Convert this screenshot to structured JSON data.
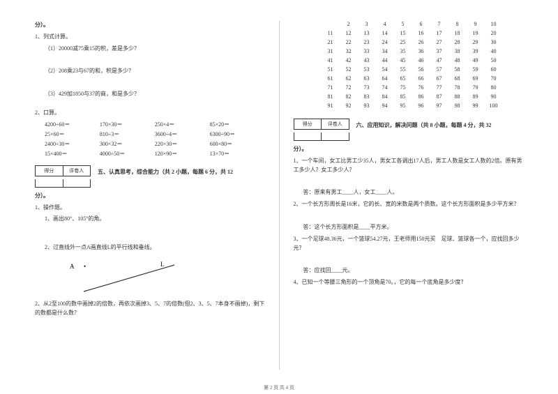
{
  "left": {
    "fen": "分）。",
    "q1": "1、列式计算。",
    "q1_1": "（1）20000减75乘15的积，差是多少？",
    "q1_2": "（2）208乘23与67的和，积是多少？",
    "q1_3": "（3）429加1850与37的商，和是多少？",
    "q2": "2、口算。",
    "calc": [
      [
        "4200÷60＝",
        "170×30＝",
        "250×4＝",
        "85×20＝"
      ],
      [
        "25×60＝",
        "810÷3＝",
        "3600÷4＝",
        "6300÷90＝"
      ],
      [
        "2400÷30＝",
        "300×32＝",
        "220×30＝",
        "600×80＝"
      ],
      [
        "15×400＝",
        "4000÷50＝",
        "120×90＝",
        "13×70＝"
      ]
    ],
    "score_a": "得分",
    "score_b": "评卷人",
    "sec5": "五、认真思考，综合能力（共 2 小题，每题 6 分，共 12",
    "fen2": "分）。",
    "op1": "1、操作题。",
    "op1_1": "1、画出80°、105°的角。",
    "op1_2": "2、过直线外一点A画直线L的平行线和垂线。",
    "label_A": "A",
    "label_dot": "•",
    "label_L": "L",
    "op2": "2、从2至100的数中画掉2的倍数，再依次画掉3、5、7的倍数(但2、3、5、7本身不画掉)，剩下的数都是什么数？"
  },
  "right": {
    "nums": [
      [
        "",
        "2",
        "3",
        "4",
        "5",
        "6",
        "7",
        "8",
        "9",
        "10"
      ],
      [
        "11",
        "12",
        "13",
        "14",
        "15",
        "16",
        "17",
        "18",
        "19",
        "20"
      ],
      [
        "21",
        "22",
        "23",
        "24",
        "25",
        "26",
        "27",
        "28",
        "29",
        "30"
      ],
      [
        "31",
        "32",
        "33",
        "34",
        "35",
        "36",
        "37",
        "38",
        "39",
        "40"
      ],
      [
        "41",
        "42",
        "43",
        "44",
        "45",
        "46",
        "47",
        "48",
        "49",
        "50"
      ],
      [
        "51",
        "52",
        "53",
        "54",
        "55",
        "56",
        "57",
        "58",
        "59",
        "60"
      ],
      [
        "61",
        "62",
        "63",
        "64",
        "65",
        "66",
        "67",
        "68",
        "69",
        "70"
      ],
      [
        "71",
        "72",
        "73",
        "74",
        "75",
        "76",
        "77",
        "78",
        "79",
        "80"
      ],
      [
        "81",
        "82",
        "83",
        "84",
        "85",
        "86",
        "87",
        "88",
        "89",
        "90"
      ],
      [
        "91",
        "92",
        "93",
        "94",
        "95",
        "96",
        "97",
        "98",
        "99",
        "100"
      ]
    ],
    "score_a": "得分",
    "score_b": "评卷人",
    "sec6": "六、应用知识，解决问题（共 8 小题，每题 4 分，共 32",
    "fen": "分）。",
    "p1": "1、一个车间，女工比男工少35人，男女工各调出17人后，男工人数是女工人数的2倍。原有男工多少人？女工多少人？",
    "a1": "答：原来有男工____人，女工____人。",
    "p2": "2、一个长方形周长是16米，它的长、宽的米数是两个质数。这个长方形面积是多少平方米？",
    "a2": "答：这个长方形面积是____平方米。",
    "p3": "3、一个足球48.36元，一个篮球54.27元，王老师用150元买　足球、篮球各一个，应找回多少元？",
    "a3": "答：应找回____元。",
    "p4": "4、已知一个等腰三角形的一个顶角是70。，它的每一个底角是多少度？"
  },
  "footer": "第 2 页 共 4 页"
}
